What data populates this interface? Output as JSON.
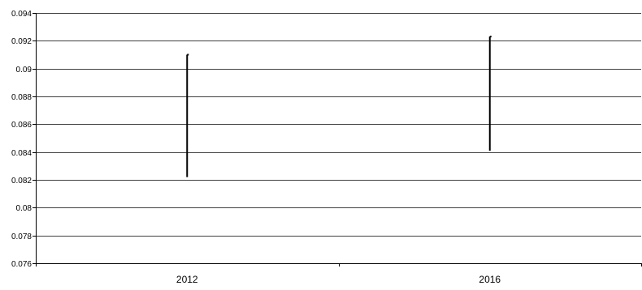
{
  "chart_data": {
    "type": "bar",
    "title": "",
    "xlabel": "",
    "ylabel": "",
    "categories": [
      "2012",
      "2016"
    ],
    "series": [
      {
        "low": [
          0.0822,
          0.0841
        ],
        "high": [
          0.091,
          0.0923
        ]
      }
    ],
    "ylim": [
      0.076,
      0.094
    ],
    "yticks": [
      0.076,
      0.078,
      0.08,
      0.082,
      0.084,
      0.086,
      0.088,
      0.09,
      0.092,
      0.094
    ],
    "ytick_labels": [
      "0.076",
      "0.078",
      "0.08",
      "0.082",
      "0.084",
      "0.086",
      "0.088",
      "0.09",
      "0.092",
      "0.094"
    ],
    "grid": true,
    "legend": "none",
    "colors": {
      "range_bar": "#000000",
      "grid": "#000000",
      "axis": "#000000"
    }
  }
}
